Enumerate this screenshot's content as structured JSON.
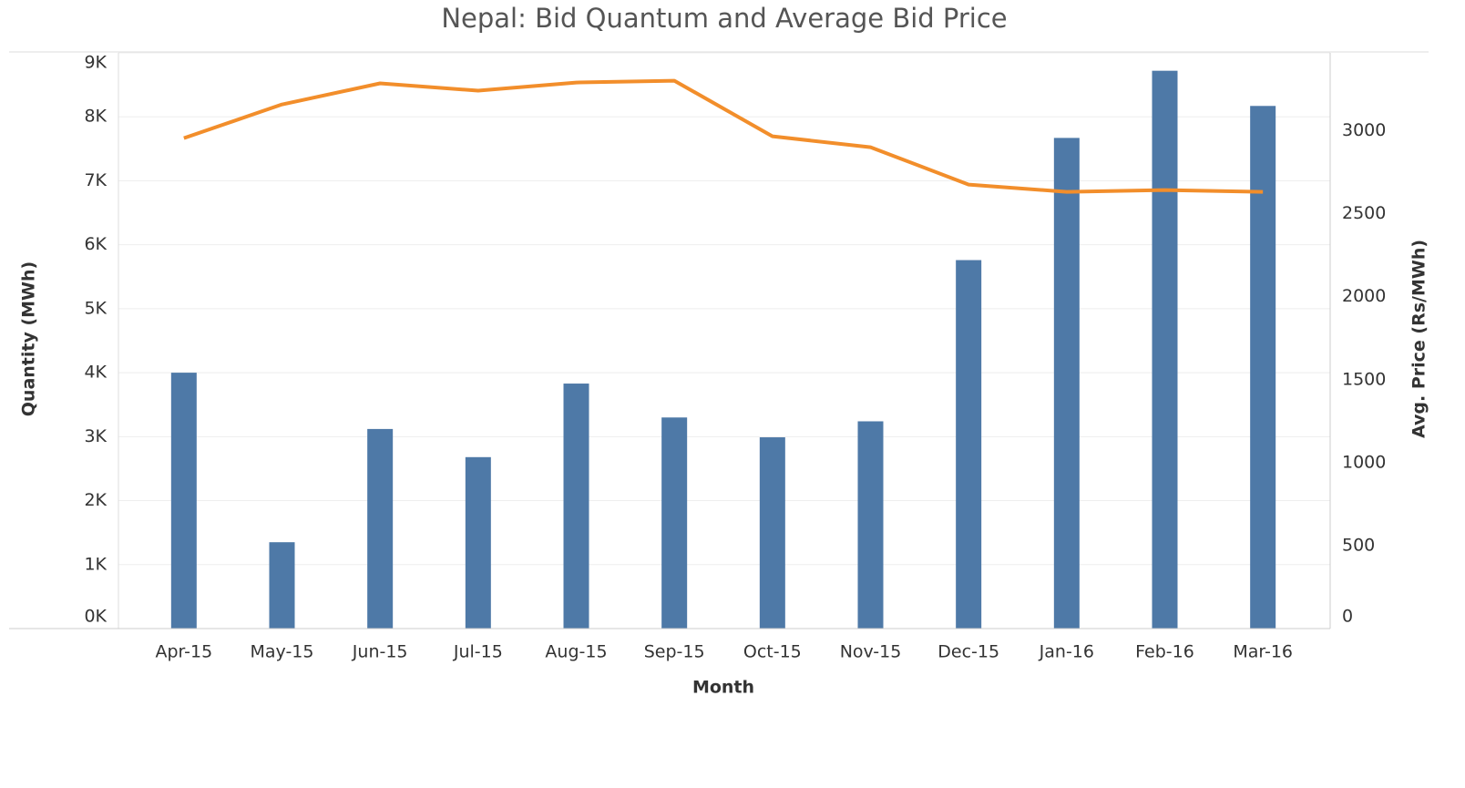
{
  "chart_data": {
    "type": "bar_line",
    "title": "Nepal: Bid Quantum and Average Bid Price",
    "xlabel": "Month",
    "ylabel": "Quantity (MWh)",
    "y2label": "Avg. Price (Rs/MWh)",
    "categories": [
      "Apr-15",
      "May-15",
      "Jun-15",
      "Jul-15",
      "Aug-15",
      "Sep-15",
      "Oct-15",
      "Nov-15",
      "Dec-15",
      "Jan-16",
      "Feb-16",
      "Mar-16"
    ],
    "series": [
      {
        "name": "Quantity (MWh)",
        "type": "bar",
        "color": "#4e79a7",
        "values": [
          4000,
          1350,
          3120,
          2680,
          3830,
          3300,
          2990,
          3240,
          5760,
          7670,
          8720,
          8170
        ]
      },
      {
        "name": "Avg. Price (Rs/MWh)",
        "type": "line",
        "axis": "y2",
        "color": "#f28e2b",
        "values": [
          2956,
          3159,
          3286,
          3242,
          3291,
          3302,
          2967,
          2901,
          2676,
          2632,
          2643,
          2632
        ]
      }
    ],
    "ylim": [
      0,
      9000
    ],
    "yticks": [
      {
        "value": 0,
        "label": "0K"
      },
      {
        "value": 1000,
        "label": "1K"
      },
      {
        "value": 2000,
        "label": "2K"
      },
      {
        "value": 3000,
        "label": "3K"
      },
      {
        "value": 4000,
        "label": "4K"
      },
      {
        "value": 5000,
        "label": "5K"
      },
      {
        "value": 6000,
        "label": "6K"
      },
      {
        "value": 7000,
        "label": "7K"
      },
      {
        "value": 8000,
        "label": "8K"
      },
      {
        "value": 9000,
        "label": "9K"
      }
    ],
    "y2lim": [
      0,
      3470
    ],
    "y2ticks": [
      0,
      500,
      1000,
      1500,
      2000,
      2500,
      3000
    ],
    "grid": true
  }
}
